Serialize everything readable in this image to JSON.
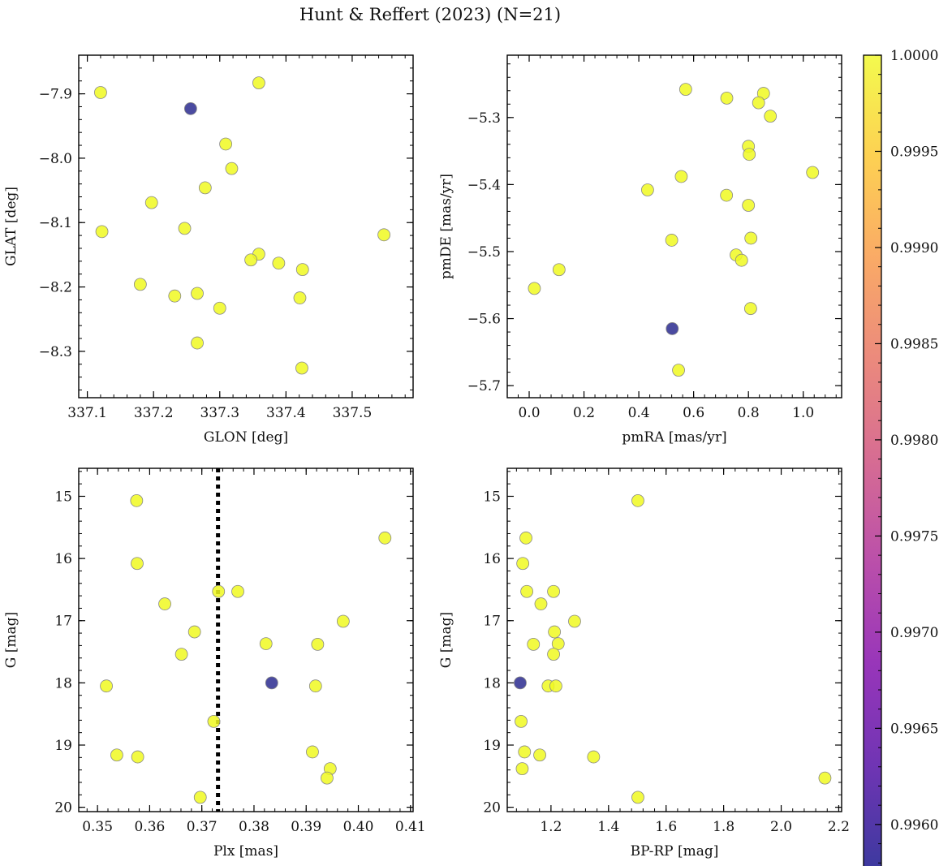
{
  "figure": {
    "title": "Hunt & Reffert (2023) (N=21)"
  },
  "colorbar": {
    "colormap": "plasma",
    "vmin": 0.99578,
    "vmax": 1.0,
    "ticks": [
      0.996,
      0.9965,
      0.997,
      0.9975,
      0.998,
      0.9985,
      0.999,
      0.9995,
      1.0
    ],
    "tick_labels": [
      "0.9960",
      "0.9965",
      "0.9970",
      "0.9975",
      "0.9980",
      "0.9985",
      "0.9990",
      "0.9995",
      "1.0000"
    ]
  },
  "colors": {
    "high": "#f0f921",
    "low": "#2c2c8f",
    "dashed_line": "#000000"
  },
  "chart_data": [
    {
      "id": "glon-glat",
      "type": "scatter",
      "xlabel": "GLON [deg]",
      "ylabel": "GLAT [deg]",
      "xlim": [
        337.087,
        337.592
      ],
      "ylim": [
        -8.372,
        -7.84
      ],
      "y_inverted": false,
      "xticks": [
        337.1,
        337.2,
        337.3,
        337.4,
        337.5
      ],
      "xtick_labels": [
        "337.1",
        "337.2",
        "337.3",
        "337.4",
        "337.5"
      ],
      "yticks": [
        -7.9,
        -8.0,
        -8.1,
        -8.2,
        -8.3
      ],
      "ytick_labels": [
        "−7.9",
        "−8.0",
        "−8.1",
        "−8.2",
        "−8.3"
      ],
      "x_minor": 0.02,
      "y_minor": 0.02,
      "points": [
        {
          "x": 337.12,
          "y": -7.898,
          "c": 1.0
        },
        {
          "x": 337.359,
          "y": -7.883,
          "c": 1.0
        },
        {
          "x": 337.309,
          "y": -7.978,
          "c": 1.0
        },
        {
          "x": 337.318,
          "y": -8.016,
          "c": 1.0
        },
        {
          "x": 337.278,
          "y": -8.046,
          "c": 1.0
        },
        {
          "x": 337.197,
          "y": -8.069,
          "c": 1.0
        },
        {
          "x": 337.247,
          "y": -8.109,
          "c": 1.0
        },
        {
          "x": 337.122,
          "y": -8.114,
          "c": 1.0
        },
        {
          "x": 337.548,
          "y": -8.119,
          "c": 1.0
        },
        {
          "x": 337.359,
          "y": -8.149,
          "c": 1.0
        },
        {
          "x": 337.347,
          "y": -8.158,
          "c": 1.0
        },
        {
          "x": 337.389,
          "y": -8.163,
          "c": 1.0
        },
        {
          "x": 337.425,
          "y": -8.173,
          "c": 1.0
        },
        {
          "x": 337.18,
          "y": -8.196,
          "c": 1.0
        },
        {
          "x": 337.266,
          "y": -8.21,
          "c": 1.0
        },
        {
          "x": 337.232,
          "y": -8.214,
          "c": 1.0
        },
        {
          "x": 337.421,
          "y": -8.217,
          "c": 1.0
        },
        {
          "x": 337.3,
          "y": -8.233,
          "c": 1.0
        },
        {
          "x": 337.266,
          "y": -8.287,
          "c": 1.0
        },
        {
          "x": 337.424,
          "y": -8.326,
          "c": 1.0
        },
        {
          "x": 337.256,
          "y": -7.923,
          "c": 0.99578
        }
      ]
    },
    {
      "id": "pmra-pmde",
      "type": "scatter",
      "xlabel": "pmRA [mas/yr]",
      "ylabel": "pmDE [mas/yr]",
      "xlim": [
        -0.08,
        1.14
      ],
      "ylim": [
        -5.718,
        -5.207
      ],
      "y_inverted": false,
      "xticks": [
        0.0,
        0.2,
        0.4,
        0.6,
        0.8,
        1.0
      ],
      "xtick_labels": [
        "0.0",
        "0.2",
        "0.4",
        "0.6",
        "0.8",
        "1.0"
      ],
      "yticks": [
        -5.3,
        -5.4,
        -5.5,
        -5.6,
        -5.7
      ],
      "ytick_labels": [
        "−5.3",
        "−5.4",
        "−5.5",
        "−5.6",
        "−5.7"
      ],
      "x_minor": 0.04,
      "y_minor": 0.02,
      "points": [
        {
          "x": 0.571,
          "y": -5.258,
          "c": 1.0
        },
        {
          "x": 0.855,
          "y": -5.264,
          "c": 1.0
        },
        {
          "x": 0.721,
          "y": -5.271,
          "c": 1.0
        },
        {
          "x": 0.837,
          "y": -5.278,
          "c": 1.0
        },
        {
          "x": 0.88,
          "y": -5.298,
          "c": 1.0
        },
        {
          "x": 0.8,
          "y": -5.343,
          "c": 1.0
        },
        {
          "x": 0.803,
          "y": -5.355,
          "c": 1.0
        },
        {
          "x": 1.034,
          "y": -5.382,
          "c": 1.0
        },
        {
          "x": 0.555,
          "y": -5.388,
          "c": 1.0
        },
        {
          "x": 0.432,
          "y": -5.408,
          "c": 1.0
        },
        {
          "x": 0.72,
          "y": -5.416,
          "c": 1.0
        },
        {
          "x": 0.8,
          "y": -5.431,
          "c": 1.0
        },
        {
          "x": 0.809,
          "y": -5.48,
          "c": 1.0
        },
        {
          "x": 0.52,
          "y": -5.483,
          "c": 1.0
        },
        {
          "x": 0.755,
          "y": -5.505,
          "c": 1.0
        },
        {
          "x": 0.775,
          "y": -5.513,
          "c": 1.0
        },
        {
          "x": 0.109,
          "y": -5.527,
          "c": 1.0
        },
        {
          "x": 0.019,
          "y": -5.555,
          "c": 1.0
        },
        {
          "x": 0.808,
          "y": -5.585,
          "c": 1.0
        },
        {
          "x": 0.545,
          "y": -5.677,
          "c": 1.0
        },
        {
          "x": 0.522,
          "y": -5.615,
          "c": 0.99578
        }
      ]
    },
    {
      "id": "plx-g",
      "type": "scatter",
      "xlabel": "Plx [mas]",
      "ylabel": "G [mag]",
      "xlim": [
        0.3464,
        0.4105
      ],
      "ylim": [
        14.55,
        20.07
      ],
      "y_inverted": true,
      "xticks": [
        0.35,
        0.36,
        0.37,
        0.38,
        0.39,
        0.4,
        0.41
      ],
      "xtick_labels": [
        "0.35",
        "0.36",
        "0.37",
        "0.38",
        "0.39",
        "0.40",
        "0.41"
      ],
      "yticks": [
        15,
        16,
        17,
        18,
        19,
        20
      ],
      "ytick_labels": [
        "15",
        "16",
        "17",
        "18",
        "19",
        "20"
      ],
      "x_minor": 0.002,
      "y_minor": 0.2,
      "vline": 0.3731,
      "points": [
        {
          "x": 0.3575,
          "y": 15.07,
          "c": 1.0
        },
        {
          "x": 0.4051,
          "y": 15.67,
          "c": 1.0
        },
        {
          "x": 0.3576,
          "y": 16.08,
          "c": 1.0
        },
        {
          "x": 0.3732,
          "y": 16.53,
          "c": 1.0
        },
        {
          "x": 0.3769,
          "y": 16.53,
          "c": 1.0
        },
        {
          "x": 0.3629,
          "y": 16.73,
          "c": 1.0
        },
        {
          "x": 0.3971,
          "y": 17.01,
          "c": 1.0
        },
        {
          "x": 0.3686,
          "y": 17.18,
          "c": 1.0
        },
        {
          "x": 0.3823,
          "y": 17.37,
          "c": 1.0
        },
        {
          "x": 0.3922,
          "y": 17.38,
          "c": 1.0
        },
        {
          "x": 0.3661,
          "y": 17.54,
          "c": 1.0
        },
        {
          "x": 0.3517,
          "y": 18.05,
          "c": 1.0
        },
        {
          "x": 0.3918,
          "y": 18.05,
          "c": 1.0
        },
        {
          "x": 0.3723,
          "y": 18.62,
          "c": 1.0
        },
        {
          "x": 0.3912,
          "y": 19.11,
          "c": 1.0
        },
        {
          "x": 0.3537,
          "y": 19.16,
          "c": 1.0
        },
        {
          "x": 0.3577,
          "y": 19.19,
          "c": 1.0
        },
        {
          "x": 0.3946,
          "y": 19.38,
          "c": 1.0
        },
        {
          "x": 0.394,
          "y": 19.53,
          "c": 1.0
        },
        {
          "x": 0.3697,
          "y": 19.84,
          "c": 1.0
        },
        {
          "x": 0.3834,
          "y": 18.0,
          "c": 0.99578
        }
      ]
    },
    {
      "id": "bprp-g",
      "type": "scatter",
      "xlabel": "BP-RP [mag]",
      "ylabel": "G [mag]",
      "xlim": [
        1.048,
        2.21
      ],
      "ylim": [
        14.55,
        20.07
      ],
      "y_inverted": true,
      "xticks": [
        1.2,
        1.4,
        1.6,
        1.8,
        2.0,
        2.2
      ],
      "xtick_labels": [
        "1.2",
        "1.4",
        "1.6",
        "1.8",
        "2.0",
        "2.2"
      ],
      "yticks": [
        15,
        16,
        17,
        18,
        19,
        20
      ],
      "ytick_labels": [
        "15",
        "16",
        "17",
        "18",
        "19",
        "20"
      ],
      "x_minor": 0.04,
      "y_minor": 0.2,
      "points": [
        {
          "x": 1.502,
          "y": 15.07,
          "c": 1.0
        },
        {
          "x": 1.113,
          "y": 15.67,
          "c": 1.0
        },
        {
          "x": 1.102,
          "y": 16.08,
          "c": 1.0
        },
        {
          "x": 1.116,
          "y": 16.53,
          "c": 1.0
        },
        {
          "x": 1.209,
          "y": 16.53,
          "c": 1.0
        },
        {
          "x": 1.165,
          "y": 16.73,
          "c": 1.0
        },
        {
          "x": 1.282,
          "y": 17.01,
          "c": 1.0
        },
        {
          "x": 1.212,
          "y": 17.18,
          "c": 1.0
        },
        {
          "x": 1.139,
          "y": 17.38,
          "c": 1.0
        },
        {
          "x": 1.225,
          "y": 17.37,
          "c": 1.0
        },
        {
          "x": 1.209,
          "y": 17.54,
          "c": 1.0
        },
        {
          "x": 1.19,
          "y": 18.05,
          "c": 1.0
        },
        {
          "x": 1.217,
          "y": 18.05,
          "c": 1.0
        },
        {
          "x": 1.096,
          "y": 18.62,
          "c": 1.0
        },
        {
          "x": 1.108,
          "y": 19.11,
          "c": 1.0
        },
        {
          "x": 1.161,
          "y": 19.16,
          "c": 1.0
        },
        {
          "x": 1.348,
          "y": 19.19,
          "c": 1.0
        },
        {
          "x": 1.1,
          "y": 19.38,
          "c": 1.0
        },
        {
          "x": 2.152,
          "y": 19.53,
          "c": 1.0
        },
        {
          "x": 1.502,
          "y": 19.84,
          "c": 1.0
        },
        {
          "x": 1.093,
          "y": 18.0,
          "c": 0.99578
        }
      ]
    }
  ]
}
